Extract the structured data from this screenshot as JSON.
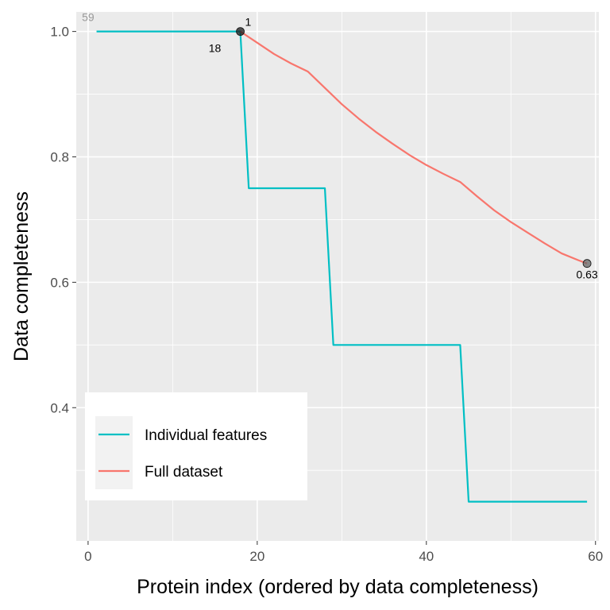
{
  "chart_data": {
    "type": "line",
    "xlabel": "Protein index (ordered by data completeness)",
    "ylabel": "Data completeness",
    "xlim": [
      -1.4,
      60.4
    ],
    "ylim": [
      0.1875,
      1.0312
    ],
    "x_ticks": [
      0,
      20,
      40,
      60
    ],
    "y_ticks": [
      0.4,
      0.6,
      0.8,
      1.0
    ],
    "x_tick_labels": [
      "0",
      "20",
      "40",
      "60"
    ],
    "y_tick_labels": [
      "0.4",
      "0.6",
      "0.8",
      "1.0"
    ],
    "grid": true,
    "legend_position": "bottom-left",
    "series": [
      {
        "name": "Individual features",
        "color": "#00BFC4",
        "x": [
          1,
          18,
          19,
          28,
          29,
          44,
          45,
          59
        ],
        "y": [
          1.0,
          1.0,
          0.75,
          0.75,
          0.5,
          0.5,
          0.25,
          0.25
        ]
      },
      {
        "name": "Full dataset",
        "color": "#F8766D",
        "x": [
          18,
          20,
          22,
          24,
          26,
          28,
          30,
          32,
          34,
          36,
          38,
          40,
          42,
          44,
          46,
          48,
          50,
          52,
          54,
          56,
          58,
          59
        ],
        "y": [
          1.0,
          0.982,
          0.964,
          0.949,
          0.936,
          0.91,
          0.884,
          0.861,
          0.84,
          0.821,
          0.803,
          0.787,
          0.773,
          0.76,
          0.737,
          0.715,
          0.696,
          0.679,
          0.662,
          0.646,
          0.635,
          0.63
        ]
      }
    ],
    "points": [
      {
        "x": 18,
        "y": 1.0,
        "color": "#1a1a1a"
      },
      {
        "x": 59,
        "y": 0.63,
        "color": "#666666"
      }
    ],
    "annotations": [
      {
        "text": "59",
        "x": 0,
        "y": 1.0,
        "style": "grey"
      },
      {
        "text": "1",
        "x": 18,
        "y": 1.0,
        "style": "black"
      },
      {
        "text": "18",
        "x": 18,
        "y": 1.0,
        "style": "black"
      },
      {
        "text": "0.63",
        "x": 59,
        "y": 0.63,
        "style": "black"
      }
    ]
  }
}
